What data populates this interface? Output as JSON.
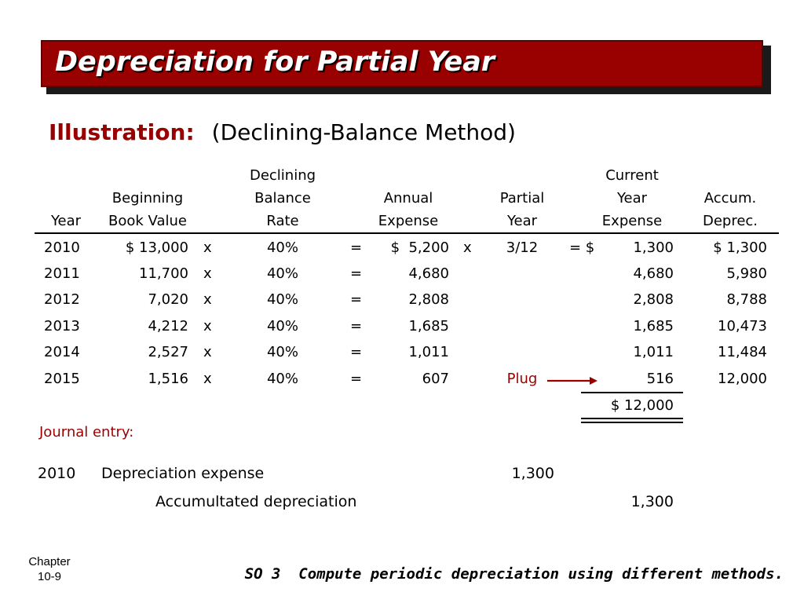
{
  "title": "Depreciation for Partial Year",
  "illustration": {
    "label": "Illustration:",
    "method": "(Declining-Balance Method)"
  },
  "table": {
    "headers": {
      "year": "Year",
      "book_value": [
        "Beginning",
        "Book Value"
      ],
      "rate": [
        "Declining",
        "Balance",
        "Rate"
      ],
      "annual": [
        "Annual",
        "Expense"
      ],
      "partial": [
        "Partial",
        "Year"
      ],
      "current": [
        "Current",
        "Year",
        "Expense"
      ],
      "accum": [
        "Accum.",
        "Deprec."
      ]
    },
    "rows": [
      {
        "year": "2010",
        "book": "$ 13,000",
        "x1": "x",
        "rate": "40%",
        "eq1": "=",
        "annual": "$  5,200",
        "x2": "x",
        "partial": "3/12",
        "eq2": "= $",
        "current": "1,300",
        "accum": "$ 1,300"
      },
      {
        "year": "2011",
        "book": "11,700",
        "x1": "x",
        "rate": "40%",
        "eq1": "=",
        "annual": "4,680",
        "x2": "",
        "partial": "",
        "eq2": "",
        "current": "4,680",
        "accum": "5,980"
      },
      {
        "year": "2012",
        "book": "7,020",
        "x1": "x",
        "rate": "40%",
        "eq1": "=",
        "annual": "2,808",
        "x2": "",
        "partial": "",
        "eq2": "",
        "current": "2,808",
        "accum": "8,788"
      },
      {
        "year": "2013",
        "book": "4,212",
        "x1": "x",
        "rate": "40%",
        "eq1": "=",
        "annual": "1,685",
        "x2": "",
        "partial": "",
        "eq2": "",
        "current": "1,685",
        "accum": "10,473"
      },
      {
        "year": "2014",
        "book": "2,527",
        "x1": "x",
        "rate": "40%",
        "eq1": "=",
        "annual": "1,011",
        "x2": "",
        "partial": "",
        "eq2": "",
        "current": "1,011",
        "accum": "11,484"
      },
      {
        "year": "2015",
        "book": "1,516",
        "x1": "x",
        "rate": "40%",
        "eq1": "=",
        "annual": "607",
        "x2": "",
        "partial": "Plug",
        "eq2": "",
        "current": "516",
        "accum": "12,000"
      }
    ],
    "total": "$ 12,000"
  },
  "journal": {
    "label": "Journal entry:",
    "year": "2010",
    "debit_account": "Depreciation expense",
    "debit_amount": "1,300",
    "credit_account": "Accumultated depreciation",
    "credit_amount": "1,300"
  },
  "footer": {
    "chapter_label": "Chapter",
    "chapter_num": "10-9",
    "so": "SO 3  Compute periodic depreciation using different methods."
  },
  "colors": {
    "title_bar": "#990000",
    "accent_text": "#990000"
  }
}
